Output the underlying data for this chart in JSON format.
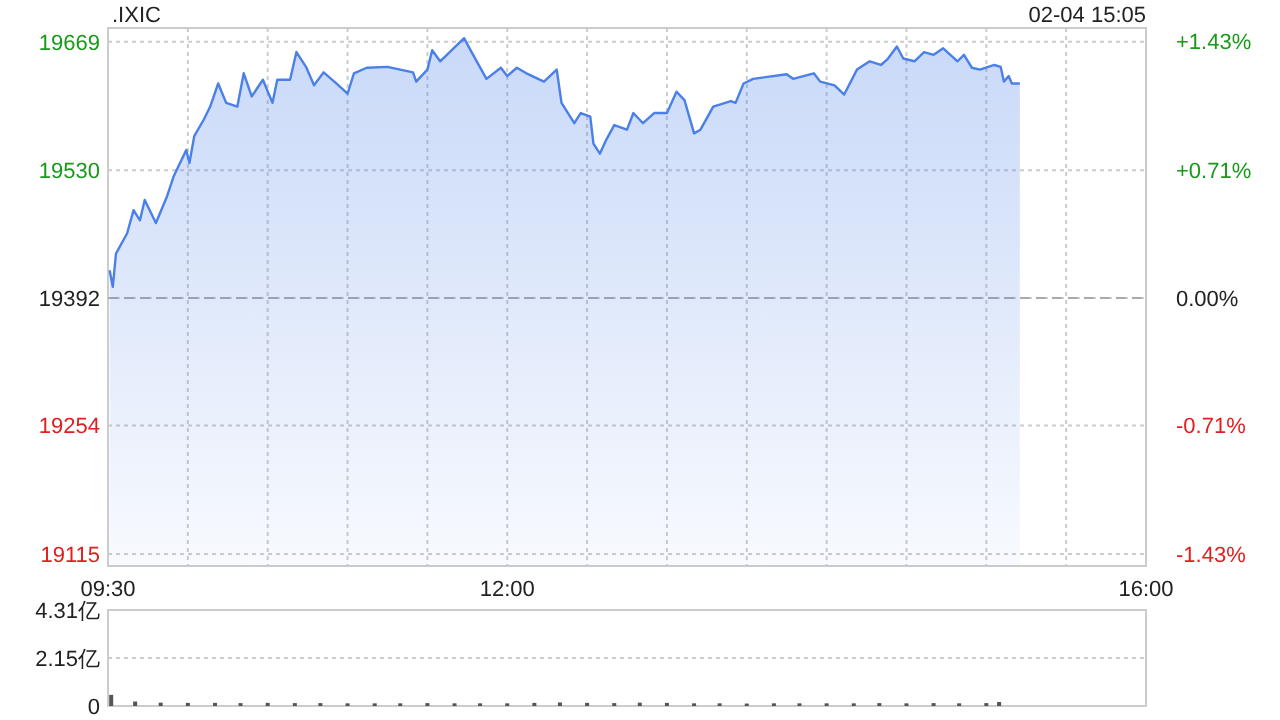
{
  "chart_data": [
    {
      "type": "area",
      "title": ".IXIC",
      "annotations": [
        "02-04 15:05"
      ],
      "xlim": [
        9.5,
        16
      ],
      "xticks": [
        {
          "value": 9.5,
          "label": "09:30"
        },
        {
          "value": 10,
          "label": null
        },
        {
          "value": 10.5,
          "label": null
        },
        {
          "value": 11,
          "label": null
        },
        {
          "value": 11.5,
          "label": null
        },
        {
          "value": 12,
          "label": "12:00"
        },
        {
          "value": 12.5,
          "label": null
        },
        {
          "value": 13,
          "label": null
        },
        {
          "value": 13.5,
          "label": null
        },
        {
          "value": 14,
          "label": null
        },
        {
          "value": 14.5,
          "label": null
        },
        {
          "value": 15,
          "label": null
        },
        {
          "value": 15.5,
          "label": null
        },
        {
          "value": 16,
          "label": "16:00"
        }
      ],
      "ylim": [
        19102,
        19684
      ],
      "yticks": [
        19115,
        19254,
        19392,
        19530,
        19669
      ],
      "y2lim": [
        -1.495,
        1.506
      ],
      "y2ticks": [
        {
          "value": -1.43,
          "label": "-1.43%"
        },
        {
          "value": -0.71,
          "label": "-0.71%"
        },
        {
          "value": 0,
          "label": "0.00%"
        },
        {
          "value": 0.71,
          "label": "+0.71%"
        },
        {
          "value": 1.43,
          "label": "+1.43%"
        }
      ],
      "grid": true,
      "ref_lines": [
        {
          "axis": "y",
          "value": 19392,
          "line_style": "dashed",
          "color": "#aaaaaa"
        }
      ],
      "series": [
        {
          "color": "#4a80e8",
          "x": [
            9.51,
            9.53,
            9.55,
            9.62,
            9.66,
            9.7,
            9.73,
            9.8,
            9.87,
            9.91,
            9.99,
            10.01,
            10.04,
            10.1,
            10.14,
            10.19,
            10.24,
            10.31,
            10.35,
            10.4,
            10.47,
            10.53,
            10.56,
            10.64,
            10.68,
            10.74,
            10.79,
            10.85,
            10.93,
            11.0,
            11.04,
            11.12,
            11.25,
            11.41,
            11.43,
            11.5,
            11.53,
            11.58,
            11.73,
            11.77,
            11.87,
            11.96,
            12.0,
            12.06,
            12.12,
            12.23,
            12.31,
            12.34,
            12.42,
            12.46,
            12.52,
            12.54,
            12.58,
            12.62,
            12.67,
            12.75,
            12.79,
            12.85,
            12.92,
            13.0,
            13.06,
            13.11,
            13.17,
            13.21,
            13.29,
            13.4,
            13.43,
            13.48,
            13.54,
            13.75,
            13.79,
            13.92,
            13.96,
            14.05,
            14.11,
            14.19,
            14.27,
            14.34,
            14.38,
            14.44,
            14.48,
            14.55,
            14.61,
            14.67,
            14.73,
            14.82,
            14.86,
            14.91,
            14.96,
            15.05,
            15.09,
            15.11,
            15.14,
            15.16,
            15.21
          ],
          "values": [
            19422,
            19404,
            19440,
            19462,
            19487,
            19476,
            19498,
            19473,
            19502,
            19523,
            19552,
            19538,
            19567,
            19585,
            19599,
            19624,
            19603,
            19599,
            19635,
            19610,
            19628,
            19603,
            19628,
            19628,
            19658,
            19642,
            19622,
            19636,
            19624,
            19613,
            19635,
            19641,
            19642,
            19636,
            19626,
            19639,
            19660,
            19648,
            19673,
            19660,
            19629,
            19641,
            19632,
            19641,
            19635,
            19626,
            19639,
            19603,
            19581,
            19592,
            19588,
            19559,
            19548,
            19563,
            19579,
            19574,
            19592,
            19581,
            19592,
            19592,
            19615,
            19606,
            19570,
            19574,
            19599,
            19605,
            19603,
            19624,
            19629,
            19634,
            19629,
            19635,
            19626,
            19622,
            19612,
            19639,
            19648,
            19644,
            19650,
            19664,
            19651,
            19648,
            19658,
            19655,
            19662,
            19648,
            19655,
            19641,
            19639,
            19644,
            19642,
            19626,
            19632,
            19624,
            19624
          ]
        }
      ]
    },
    {
      "type": "bar",
      "xlim": [
        9.5,
        16
      ],
      "tick_labels": "y",
      "ylim": [
        0,
        4.31
      ],
      "yticks": [
        {
          "value": 0,
          "label": "0"
        },
        {
          "value": 2.15,
          "label": "2.15亿"
        },
        {
          "value": 4.31,
          "label": "4.31亿"
        }
      ],
      "grid": "y",
      "series": [
        {
          "color": "#555555",
          "x": [
            9.52,
            9.67,
            9.83,
            10.0,
            10.17,
            10.33,
            10.5,
            10.67,
            10.83,
            11.0,
            11.17,
            11.33,
            11.5,
            11.67,
            11.83,
            12.0,
            12.17,
            12.33,
            12.5,
            12.67,
            12.83,
            13.0,
            13.17,
            13.33,
            13.5,
            13.67,
            13.83,
            14.0,
            14.17,
            14.33,
            14.5,
            14.67,
            14.83,
            15.0,
            15.08
          ],
          "values": [
            0.5,
            0.2,
            0.15,
            0.14,
            0.14,
            0.13,
            0.14,
            0.13,
            0.13,
            0.12,
            0.12,
            0.12,
            0.13,
            0.12,
            0.12,
            0.12,
            0.14,
            0.16,
            0.14,
            0.13,
            0.15,
            0.14,
            0.12,
            0.12,
            0.11,
            0.12,
            0.12,
            0.12,
            0.12,
            0.13,
            0.12,
            0.13,
            0.12,
            0.13,
            0.18
          ]
        }
      ]
    }
  ]
}
